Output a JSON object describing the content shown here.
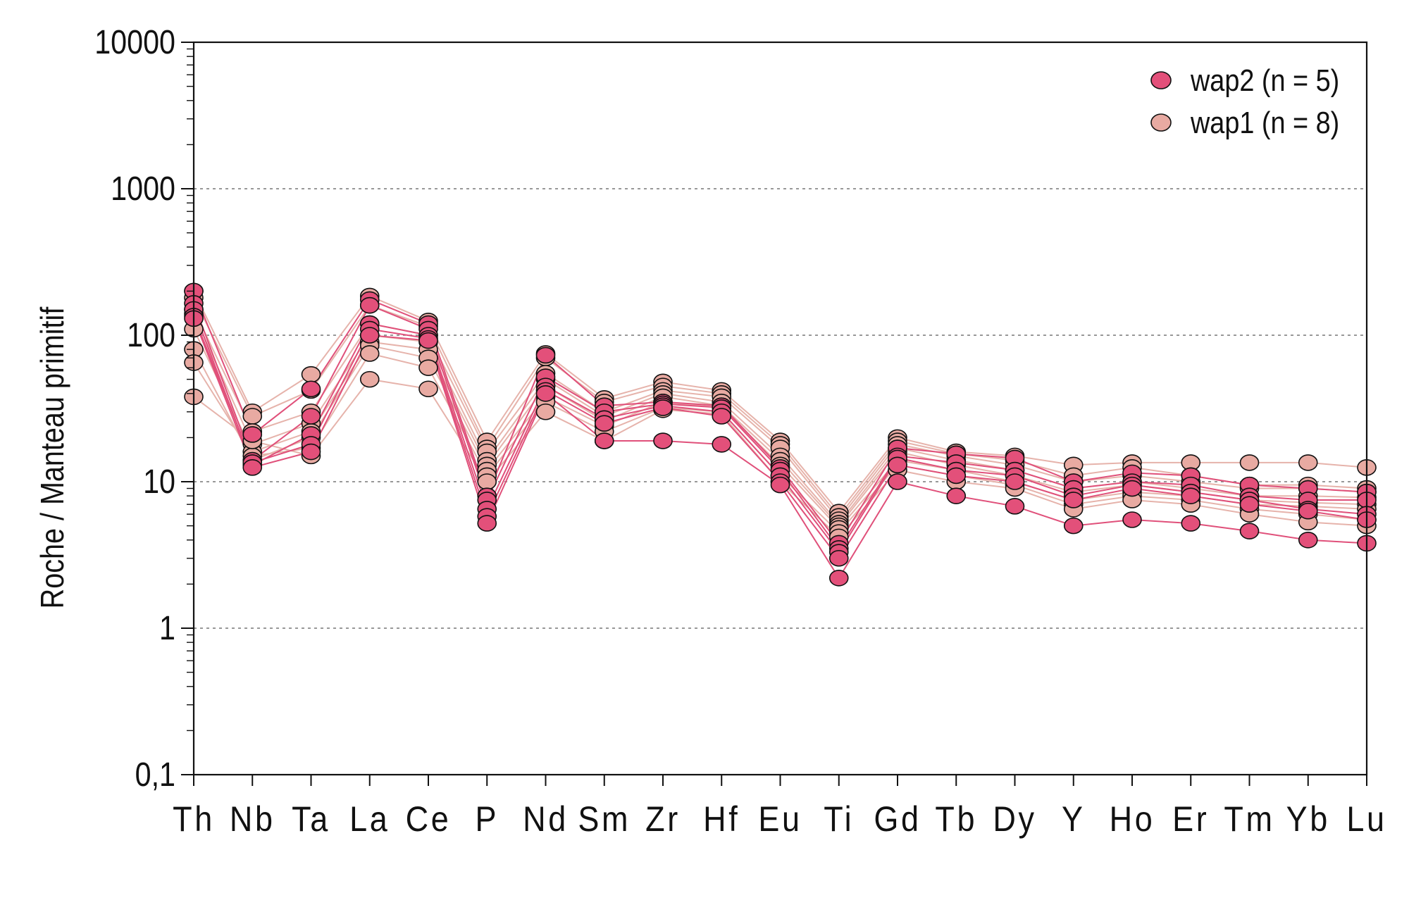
{
  "chart_data": {
    "type": "line",
    "ylabel": "Roche / Manteau primitif",
    "xlabel": "",
    "title": "",
    "y_scale": "log",
    "ylim": [
      0.1,
      10000
    ],
    "y_ticks": [
      "0,1",
      "1",
      "10",
      "100",
      "1000",
      "10000"
    ],
    "y_tick_values": [
      0.1,
      1,
      10,
      100,
      1000,
      10000
    ],
    "grid": "dotted horizontal at major ticks 1 to 1000",
    "legend_position": "top-right",
    "categories": [
      "Th",
      "Nb",
      "Ta",
      "La",
      "Ce",
      "P",
      "Nd",
      "Sm",
      "Zr",
      "Hf",
      "Eu",
      "Ti",
      "Gd",
      "Tb",
      "Dy",
      "Y",
      "Ho",
      "Er",
      "Tm",
      "Yb",
      "Lu"
    ],
    "groups": [
      {
        "name": "wap1 (n = 8)",
        "color": "#e8aaa2",
        "line_color": "#e6b3ab",
        "samples": [
          [
            200,
            30,
            54,
            185,
            125,
            19,
            75,
            37,
            48,
            42,
            19,
            6.2,
            20,
            16,
            15,
            13,
            13.5,
            13.5,
            13.5,
            13.5,
            12.5
          ],
          [
            180,
            28,
            42,
            160,
            115,
            17,
            70,
            35,
            45,
            40,
            18,
            5.8,
            19,
            15.5,
            14,
            11,
            12.5,
            11,
            9.5,
            9.5,
            9
          ],
          [
            150,
            22,
            30,
            120,
            100,
            16,
            55,
            30,
            42,
            38,
            17,
            5.5,
            18,
            15,
            13,
            10,
            11,
            10,
            9,
            9,
            8.5
          ],
          [
            140,
            18,
            25,
            100,
            90,
            14,
            50,
            28,
            40,
            35,
            15,
            5.2,
            17,
            14,
            12,
            9,
            10,
            9,
            8,
            8,
            7.8
          ],
          [
            110,
            16,
            22,
            90,
            80,
            13,
            45,
            26,
            38,
            33,
            14,
            5,
            16,
            13,
            11,
            8.5,
            9.5,
            8.5,
            7.5,
            7.2,
            7
          ],
          [
            80,
            14,
            20,
            85,
            70,
            12,
            38,
            24,
            35,
            32,
            13,
            4.8,
            14,
            12,
            10,
            7.5,
            8.5,
            8,
            7,
            6.8,
            6.5
          ],
          [
            65,
            15,
            17,
            75,
            60,
            11,
            35,
            22,
            32,
            30,
            11,
            4.5,
            13,
            11,
            9.5,
            7,
            8,
            7.5,
            6.5,
            6,
            5.5
          ],
          [
            38,
            19,
            15,
            50,
            43,
            10,
            30,
            19,
            31,
            29,
            10,
            4.2,
            12,
            10,
            9,
            6.5,
            7.5,
            7,
            6,
            5.3,
            5
          ]
        ]
      },
      {
        "name": "wap2 (n = 5)",
        "color": "#e3507a",
        "line_color": "#e0507a",
        "samples": [
          [
            200,
            21,
            43,
            175,
            120,
            8,
            73,
            33,
            35,
            33,
            12.5,
            3.8,
            17,
            15.5,
            14.5,
            10,
            11.5,
            11,
            9.5,
            9,
            8.5
          ],
          [
            165,
            14,
            28,
            160,
            110,
            7.5,
            52,
            30,
            34,
            32,
            12,
            3.5,
            15,
            13.5,
            12,
            9,
            10,
            9.5,
            8,
            7.5,
            7.5
          ],
          [
            150,
            13,
            21,
            120,
            100,
            6.5,
            45,
            27,
            33,
            30,
            11,
            3.3,
            14.5,
            12,
            11,
            8,
            9.5,
            8.5,
            7.5,
            6.5,
            6
          ],
          [
            135,
            13.5,
            18,
            110,
            95,
            5.8,
            42,
            25,
            32,
            28,
            10,
            3,
            13,
            11,
            10,
            7.5,
            9,
            8,
            7,
            6.3,
            5.5
          ],
          [
            130,
            12.5,
            16,
            100,
            92,
            5.2,
            40,
            19,
            19,
            18,
            9.5,
            2.2,
            10,
            8,
            6.8,
            5,
            5.5,
            5.2,
            4.6,
            4,
            3.8
          ]
        ]
      }
    ]
  }
}
